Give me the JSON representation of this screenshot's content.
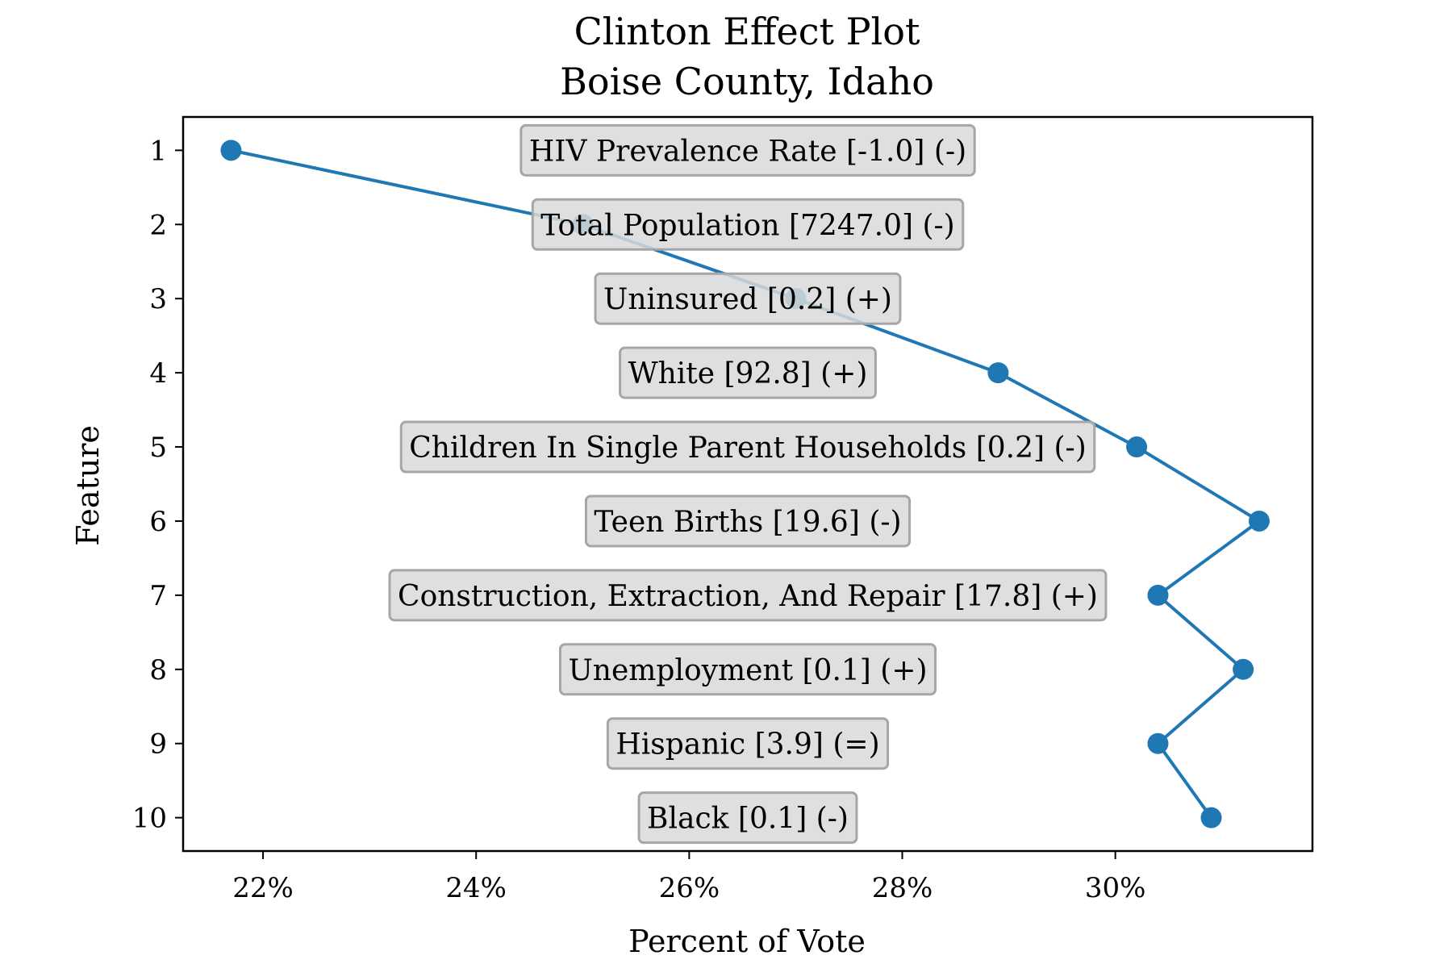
{
  "chart_data": {
    "type": "line",
    "title": "Clinton Effect Plot",
    "subtitle": "Boise County, Idaho",
    "xlabel": "Percent of Vote",
    "ylabel": "Feature",
    "xlim": [
      21.25,
      31.85
    ],
    "ylim": [
      10.45,
      0.55
    ],
    "x_ticks": [
      22,
      24,
      26,
      28,
      30
    ],
    "x_tick_labels": [
      "22%",
      "24%",
      "26%",
      "28%",
      "30%"
    ],
    "y_ticks": [
      1,
      2,
      3,
      4,
      5,
      6,
      7,
      8,
      9,
      10
    ],
    "y_tick_labels": [
      "1",
      "2",
      "3",
      "4",
      "5",
      "6",
      "7",
      "8",
      "9",
      "10"
    ],
    "grid": false,
    "series_color": "#1f77b4",
    "label_box_fill": "#d9d9d9",
    "label_box_stroke": "#a6a6a6",
    "points": [
      {
        "feature": 1,
        "x": 21.7,
        "label": "HIV Prevalence Rate [-1.0] (-)"
      },
      {
        "feature": 2,
        "x": 25.0,
        "label": "Total Population [7247.0] (-)"
      },
      {
        "feature": 3,
        "x": 27.0,
        "label": "Uninsured [0.2] (+)"
      },
      {
        "feature": 4,
        "x": 28.9,
        "label": "White [92.8] (+)"
      },
      {
        "feature": 5,
        "x": 30.2,
        "label": "Children In Single Parent Households [0.2] (-)"
      },
      {
        "feature": 6,
        "x": 31.35,
        "label": "Teen Births [19.6] (-)"
      },
      {
        "feature": 7,
        "x": 30.4,
        "label": "Construction, Extraction, And Repair [17.8] (+)"
      },
      {
        "feature": 8,
        "x": 31.2,
        "label": "Unemployment [0.1] (+)"
      },
      {
        "feature": 9,
        "x": 30.4,
        "label": "Hispanic [3.9] (=)"
      },
      {
        "feature": 10,
        "x": 30.9,
        "label": "Black [0.1] (-)"
      }
    ]
  }
}
